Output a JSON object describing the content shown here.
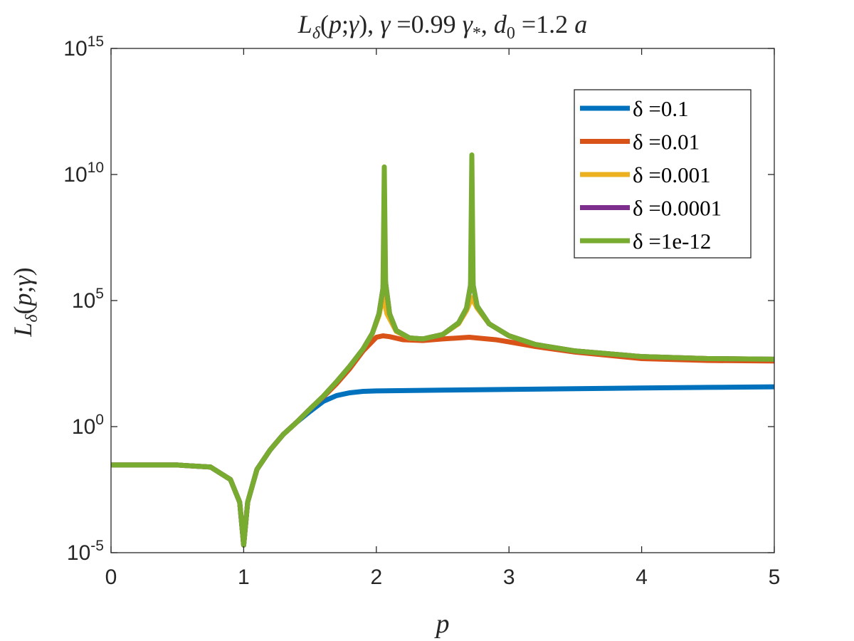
{
  "chart_data": {
    "type": "line",
    "title": "L_δ(p;γ), γ =0.99 γ_*, d_0 =1.2 a",
    "xlabel": "p",
    "ylabel": "L_δ(p;γ)",
    "xlim": [
      0,
      5
    ],
    "ylim": [
      1e-05,
      1000000000000000.0
    ],
    "yscale": "log",
    "grid": false,
    "legend_position": "top-right",
    "x_ticks": [
      "0",
      "1",
      "2",
      "3",
      "4",
      "5"
    ],
    "y_ticks": [
      {
        "base": "10",
        "exp": "-5"
      },
      {
        "base": "10",
        "exp": "0"
      },
      {
        "base": "10",
        "exp": "5"
      },
      {
        "base": "10",
        "exp": "10"
      },
      {
        "base": "10",
        "exp": "15"
      }
    ],
    "series": [
      {
        "name": "δ =0.1",
        "color": "#0072BD",
        "x": [
          0,
          0.5,
          0.75,
          0.9,
          0.97,
          1.0,
          1.03,
          1.1,
          1.2,
          1.3,
          1.4,
          1.5,
          1.6,
          1.7,
          1.8,
          1.9,
          2.0,
          2.5,
          3.0,
          3.5,
          4.0,
          4.5,
          5.0
        ],
        "y": [
          0.03,
          0.03,
          0.025,
          0.008,
          0.001,
          2e-05,
          0.001,
          0.02,
          0.12,
          0.5,
          1.5,
          4,
          10,
          17,
          22,
          25,
          26,
          28,
          30,
          32,
          34,
          36,
          38
        ]
      },
      {
        "name": "δ =0.01",
        "color": "#D95319",
        "x": [
          0,
          0.5,
          0.75,
          0.9,
          0.97,
          1.0,
          1.03,
          1.1,
          1.2,
          1.3,
          1.4,
          1.5,
          1.6,
          1.7,
          1.8,
          1.9,
          2.0,
          2.05,
          2.1,
          2.2,
          2.35,
          2.5,
          2.7,
          2.9,
          3.0,
          3.2,
          3.5,
          4.0,
          4.5,
          5.0
        ],
        "y": [
          0.03,
          0.03,
          0.025,
          0.008,
          0.001,
          2e-05,
          0.001,
          0.02,
          0.12,
          0.5,
          1.5,
          5,
          15,
          50,
          200,
          1000,
          3500,
          4000,
          3700,
          2800,
          2600,
          3000,
          3500,
          2800,
          2300,
          1500,
          900,
          500,
          420,
          400
        ]
      },
      {
        "name": "δ =0.001",
        "color": "#EDB120",
        "x": [
          0,
          0.5,
          0.75,
          0.9,
          0.97,
          1.0,
          1.03,
          1.1,
          1.2,
          1.3,
          1.4,
          1.5,
          1.6,
          1.7,
          1.8,
          1.9,
          1.97,
          2.02,
          2.05,
          2.08,
          2.15,
          2.25,
          2.35,
          2.5,
          2.62,
          2.68,
          2.72,
          2.76,
          2.85,
          3.0,
          3.2,
          3.5,
          4.0,
          4.5,
          5.0
        ],
        "y": [
          0.03,
          0.03,
          0.025,
          0.008,
          0.001,
          2e-05,
          0.001,
          0.02,
          0.12,
          0.5,
          1.5,
          5,
          16,
          60,
          250,
          1200,
          5000,
          25000,
          150000,
          30000,
          6000,
          3200,
          3000,
          4500,
          12000,
          40000,
          130000,
          50000,
          12000,
          4000,
          1800,
          1000,
          600,
          500,
          470
        ]
      },
      {
        "name": "δ =0.0001",
        "color": "#7E2F8E",
        "x": [
          0,
          0.5,
          0.75,
          0.9,
          0.97,
          1.0,
          1.03,
          1.1,
          1.2,
          1.3,
          1.4,
          1.5,
          1.6,
          1.7,
          1.8,
          1.9,
          1.97,
          2.02,
          2.05,
          2.06,
          2.07,
          2.1,
          2.15,
          2.25,
          2.35,
          2.5,
          2.62,
          2.68,
          2.71,
          2.72,
          2.73,
          2.76,
          2.85,
          3.0,
          3.2,
          3.5,
          4.0,
          4.5,
          5.0
        ],
        "y": [
          0.03,
          0.03,
          0.025,
          0.008,
          0.001,
          2e-05,
          0.001,
          0.02,
          0.12,
          0.5,
          1.5,
          5,
          16,
          60,
          250,
          1200,
          5000,
          30000,
          300000,
          2000000,
          500000,
          30000,
          6500,
          3300,
          3000,
          4500,
          13000,
          50000,
          400000,
          3000000,
          400000,
          60000,
          12000,
          4000,
          1800,
          1000,
          600,
          500,
          470
        ]
      },
      {
        "name": "δ =1e-12",
        "color": "#77AC30",
        "x": [
          0,
          0.5,
          0.75,
          0.9,
          0.97,
          1.0,
          1.03,
          1.1,
          1.2,
          1.3,
          1.4,
          1.5,
          1.6,
          1.7,
          1.8,
          1.9,
          1.97,
          2.02,
          2.05,
          2.06,
          2.07,
          2.1,
          2.15,
          2.25,
          2.35,
          2.5,
          2.62,
          2.68,
          2.71,
          2.72,
          2.73,
          2.76,
          2.85,
          3.0,
          3.2,
          3.5,
          4.0,
          4.5,
          5.0
        ],
        "y": [
          0.03,
          0.03,
          0.025,
          0.008,
          0.001,
          2e-05,
          0.001,
          0.02,
          0.12,
          0.5,
          1.5,
          5,
          16,
          60,
          250,
          1200,
          5000,
          30000,
          300000,
          20000000000,
          500000,
          30000,
          6500,
          3300,
          3000,
          4500,
          13000,
          50000,
          400000,
          60000000000,
          400000,
          60000,
          12000,
          4000,
          1800,
          1000,
          600,
          500,
          470
        ]
      }
    ]
  }
}
